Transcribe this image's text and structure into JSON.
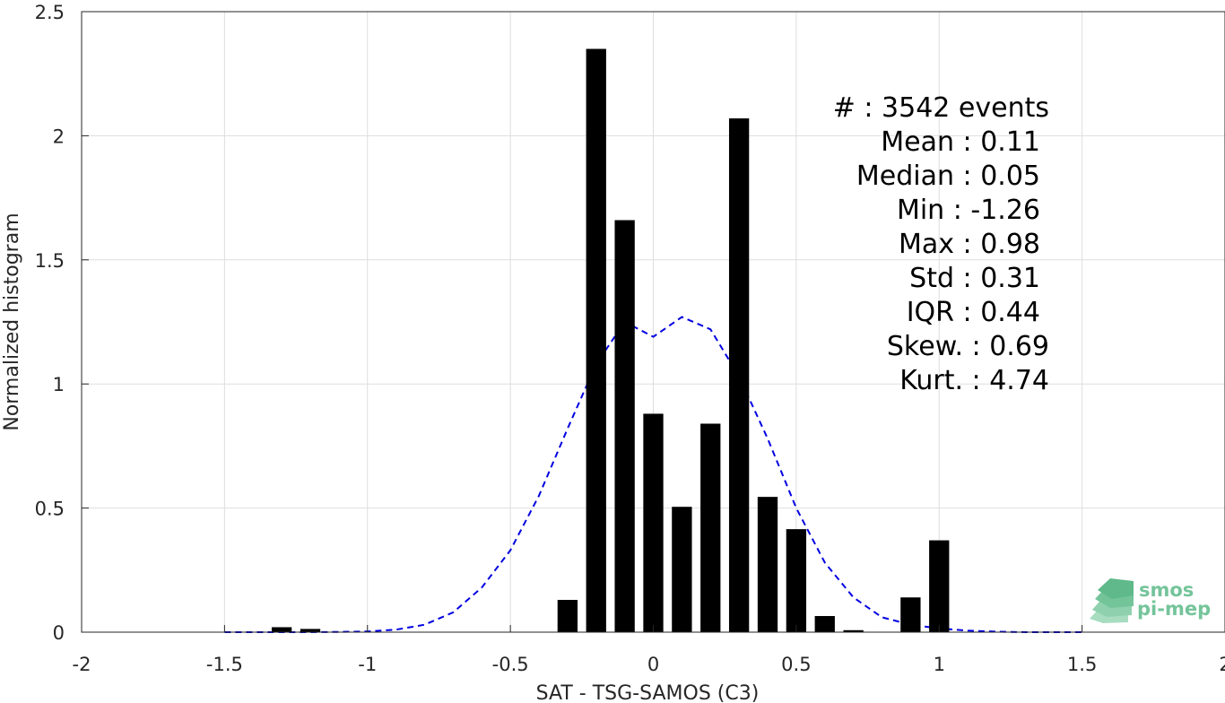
{
  "chart_data": {
    "type": "bar",
    "xlabel": "SAT - TSG-SAMOS (C3)",
    "ylabel": "Normalized histogram",
    "xlim": [
      -2,
      2
    ],
    "ylim": [
      0,
      2.5
    ],
    "xticks": [
      -2,
      -1.5,
      -1,
      -0.5,
      0,
      0.5,
      1,
      1.5,
      2
    ],
    "xtick_labels": [
      "-2",
      "-1.5",
      "-1",
      "-0.5",
      "0",
      "0.5",
      "1",
      "1.5",
      "2"
    ],
    "yticks": [
      0,
      0.5,
      1,
      1.5,
      2,
      2.5
    ],
    "ytick_labels": [
      "0",
      "0.5",
      "1",
      "1.5",
      "2",
      "2.5"
    ],
    "grid": true,
    "bar_width": 0.07,
    "bars": {
      "x": [
        -1.3,
        -1.2,
        -0.3,
        -0.2,
        -0.1,
        0.0,
        0.1,
        0.2,
        0.3,
        0.4,
        0.5,
        0.6,
        0.7,
        0.9,
        1.0
      ],
      "values": [
        0.02,
        0.013,
        0.13,
        2.35,
        1.66,
        0.88,
        0.505,
        0.84,
        2.07,
        0.545,
        0.415,
        0.065,
        0.008,
        0.14,
        0.37
      ],
      "color": "#000000"
    },
    "fit_curve": {
      "style": "dashed",
      "color": "#0000e0",
      "x": [
        -1.5,
        -1.4,
        -1.3,
        -1.2,
        -1.1,
        -1.0,
        -0.9,
        -0.8,
        -0.7,
        -0.6,
        -0.5,
        -0.4,
        -0.3,
        -0.2,
        -0.1,
        0.0,
        0.1,
        0.2,
        0.3,
        0.4,
        0.5,
        0.6,
        0.7,
        0.8,
        0.9,
        1.0,
        1.1,
        1.2,
        1.3,
        1.4,
        1.5
      ],
      "y": [
        0.0,
        0.0,
        0.0,
        0.0,
        0.001,
        0.003,
        0.01,
        0.03,
        0.08,
        0.18,
        0.33,
        0.55,
        0.82,
        1.08,
        1.25,
        1.19,
        1.27,
        1.22,
        1.03,
        0.78,
        0.5,
        0.28,
        0.14,
        0.06,
        0.03,
        0.015,
        0.006,
        0.002,
        0.0,
        0.0,
        0.0
      ]
    },
    "stats": [
      {
        "label": "#  : 3542 events"
      },
      {
        "label": "Mean : 0.11"
      },
      {
        "label": "Median : 0.05"
      },
      {
        "label": "Min : -1.26"
      },
      {
        "label": "Max : 0.98"
      },
      {
        "label": "Std : 0.31"
      },
      {
        "label": "IQR : 0.44"
      },
      {
        "label": "Skew. : 0.69"
      },
      {
        "label": "Kurt. : 4.74"
      }
    ]
  },
  "logo": {
    "line1": "smos",
    "line2": "pi-mep",
    "color": "#5fb98a"
  }
}
